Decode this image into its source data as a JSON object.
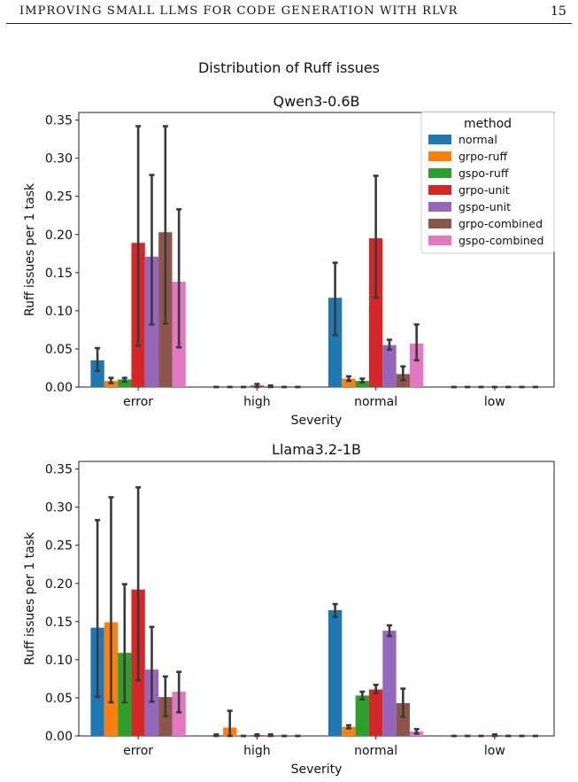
{
  "page": {
    "running_title": "IMPROVING SMALL LLMS FOR CODE GENERATION WITH RLVR",
    "page_number": "15"
  },
  "figure": {
    "suptitle": "Distribution of Ruff issues"
  },
  "chart_data": [
    {
      "type": "bar",
      "title": "Qwen3-0.6B",
      "xlabel": "Severity",
      "ylabel": "Ruff issues per 1 task",
      "ylim": [
        0,
        0.36
      ],
      "yticks": [
        "0.00",
        "0.05",
        "0.10",
        "0.15",
        "0.20",
        "0.25",
        "0.30",
        "0.35"
      ],
      "grid": false,
      "categories": [
        "error",
        "high",
        "normal",
        "low"
      ],
      "legend": {
        "title": "method",
        "placement": "top-right"
      },
      "error_bars": true,
      "series": [
        {
          "name": "normal",
          "color": "#1f77b4",
          "values": [
            0.035,
            0.0,
            0.117,
            0.0
          ],
          "err_low": [
            0.021,
            0.0,
            0.068,
            0.0
          ],
          "err_high": [
            0.051,
            0.0,
            0.163,
            0.0
          ]
        },
        {
          "name": "grpo-ruff",
          "color": "#ff7f0e",
          "values": [
            0.008,
            0.0,
            0.011,
            0.0
          ],
          "err_low": [
            0.005,
            0.0,
            0.008,
            0.0
          ],
          "err_high": [
            0.012,
            0.0,
            0.014,
            0.0
          ]
        },
        {
          "name": "gspo-ruff",
          "color": "#2ca02c",
          "values": [
            0.01,
            0.0,
            0.008,
            0.0
          ],
          "err_low": [
            0.007,
            0.0,
            0.006,
            0.0
          ],
          "err_high": [
            0.012,
            0.0,
            0.011,
            0.0
          ]
        },
        {
          "name": "grpo-unit",
          "color": "#d62728",
          "values": [
            0.189,
            0.002,
            0.195,
            0.0
          ],
          "err_low": [
            0.054,
            0.0,
            0.117,
            0.0
          ],
          "err_high": [
            0.342,
            0.004,
            0.277,
            0.0
          ]
        },
        {
          "name": "gspo-unit",
          "color": "#9467bd",
          "values": [
            0.171,
            0.001,
            0.055,
            0.0
          ],
          "err_low": [
            0.082,
            0.0,
            0.049,
            0.0
          ],
          "err_high": [
            0.278,
            0.002,
            0.062,
            0.0
          ]
        },
        {
          "name": "grpo-combined",
          "color": "#8c564b",
          "values": [
            0.203,
            0.0,
            0.017,
            0.0
          ],
          "err_low": [
            0.083,
            0.0,
            0.009,
            0.0
          ],
          "err_high": [
            0.342,
            0.0,
            0.027,
            0.0
          ]
        },
        {
          "name": "gspo-combined",
          "color": "#e377c2",
          "values": [
            0.138,
            0.0,
            0.057,
            0.0
          ],
          "err_low": [
            0.052,
            0.0,
            0.035,
            0.0
          ],
          "err_high": [
            0.233,
            0.0,
            0.082,
            0.0
          ]
        }
      ]
    },
    {
      "type": "bar",
      "title": "Llama3.2-1B",
      "xlabel": "Severity",
      "ylabel": "Ruff issues per 1 task",
      "ylim": [
        0,
        0.36
      ],
      "yticks": [
        "0.00",
        "0.05",
        "0.10",
        "0.15",
        "0.20",
        "0.25",
        "0.30",
        "0.35"
      ],
      "grid": false,
      "categories": [
        "error",
        "high",
        "normal",
        "low"
      ],
      "error_bars": true,
      "series": [
        {
          "name": "normal",
          "color": "#1f77b4",
          "values": [
            0.142,
            0.001,
            0.165,
            0.0
          ],
          "err_low": [
            0.051,
            0.0,
            0.156,
            0.0
          ],
          "err_high": [
            0.283,
            0.002,
            0.173,
            0.0
          ]
        },
        {
          "name": "grpo-ruff",
          "color": "#ff7f0e",
          "values": [
            0.149,
            0.011,
            0.012,
            0.0
          ],
          "err_low": [
            0.044,
            0.0,
            0.01,
            0.0
          ],
          "err_high": [
            0.313,
            0.033,
            0.014,
            0.0
          ]
        },
        {
          "name": "gspo-ruff",
          "color": "#2ca02c",
          "values": [
            0.109,
            0.0,
            0.053,
            0.0
          ],
          "err_low": [
            0.044,
            0.0,
            0.048,
            0.0
          ],
          "err_high": [
            0.199,
            0.0,
            0.058,
            0.0
          ]
        },
        {
          "name": "grpo-unit",
          "color": "#d62728",
          "values": [
            0.192,
            0.001,
            0.061,
            0.001
          ],
          "err_low": [
            0.073,
            0.0,
            0.056,
            0.0
          ],
          "err_high": [
            0.326,
            0.002,
            0.067,
            0.002
          ]
        },
        {
          "name": "gspo-unit",
          "color": "#9467bd",
          "values": [
            0.087,
            0.001,
            0.138,
            0.0
          ],
          "err_low": [
            0.045,
            0.0,
            0.131,
            0.0
          ],
          "err_high": [
            0.143,
            0.002,
            0.145,
            0.0
          ]
        },
        {
          "name": "grpo-combined",
          "color": "#8c564b",
          "values": [
            0.051,
            0.0,
            0.043,
            0.0
          ],
          "err_low": [
            0.026,
            0.0,
            0.025,
            0.0
          ],
          "err_high": [
            0.078,
            0.0,
            0.062,
            0.0
          ]
        },
        {
          "name": "gspo-combined",
          "color": "#e377c2",
          "values": [
            0.058,
            0.0,
            0.006,
            0.0
          ],
          "err_low": [
            0.031,
            0.0,
            0.003,
            0.0
          ],
          "err_high": [
            0.084,
            0.0,
            0.009,
            0.0
          ]
        }
      ]
    }
  ]
}
